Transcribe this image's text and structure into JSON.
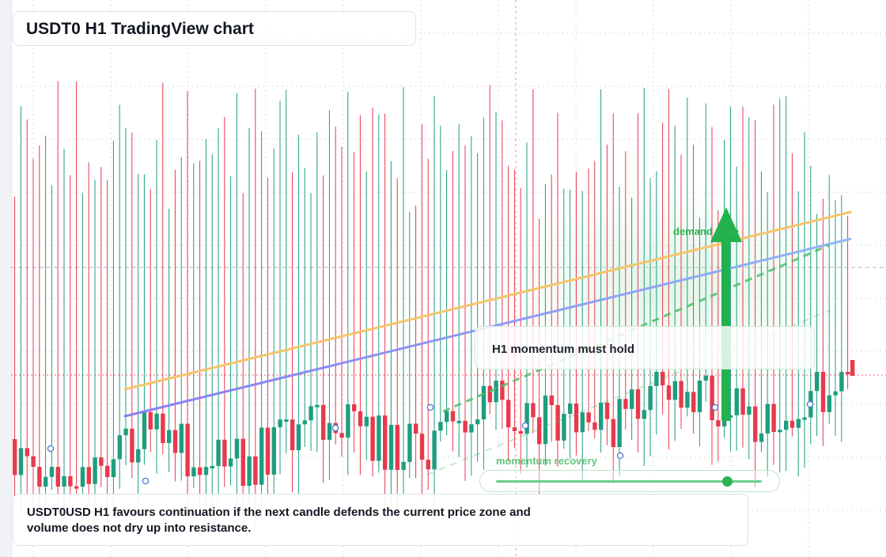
{
  "header": {
    "title": "USDT0 H1 TradingView chart"
  },
  "annotations": {
    "note": "H1 momentum must hold",
    "zone_label": "demand zone",
    "slider_label": "momentum recovery",
    "momentum_level": 0.87
  },
  "footer": {
    "text": "USDT0USD H1 favours continuation if the next candle defends the current price zone and volume does not dry up into resistance."
  },
  "colors": {
    "bull": "#1e9e7e",
    "bear": "#e8394d",
    "trend_upper": "#f6c46b",
    "trend_lower_start": "#8c7cf0",
    "trend_lower_end": "#8fb7f5",
    "projection": "#4cbe6c",
    "arrow": "#22b14c",
    "grid": "#d9dde3"
  },
  "chart_data": {
    "type": "candlestick",
    "symbol": "USDT0USD",
    "timeframe": "H1",
    "candle_count": 136,
    "values_visible": false,
    "trend_lines": [
      "upper",
      "lower"
    ],
    "grid": true,
    "legend": "none"
  }
}
